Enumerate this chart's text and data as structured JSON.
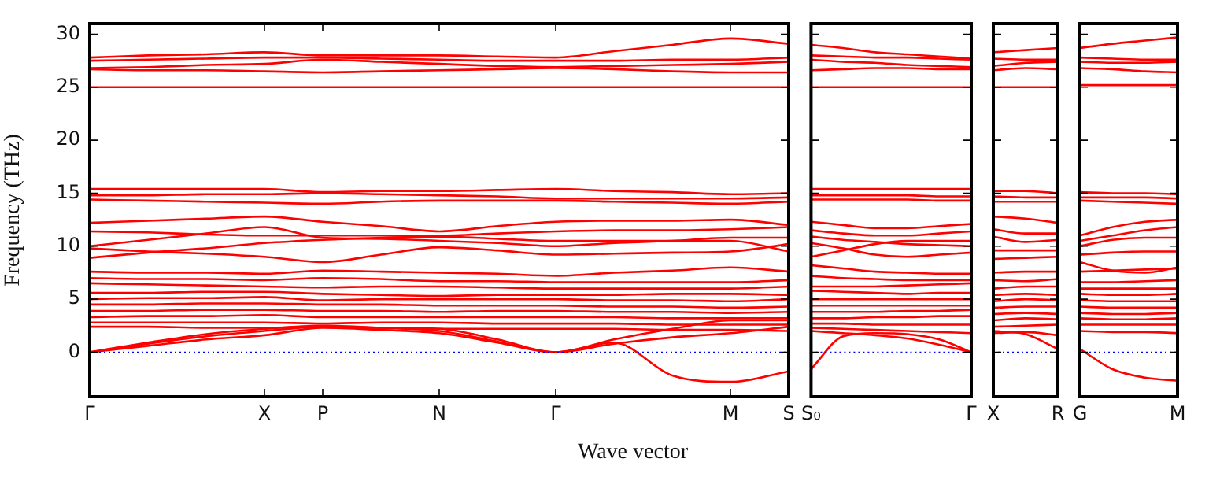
{
  "chart_data": [
    {
      "type": "line",
      "ylabel": "Frequency (THz)",
      "xlabel": "Wave vector",
      "grid": false,
      "legend": false,
      "marker": "none",
      "line_style": "solid",
      "categories": [
        "Γ",
        null,
        null,
        "X",
        "P",
        null,
        "N",
        null,
        "Γ",
        null,
        null,
        "M",
        "S"
      ],
      "ylim": [
        -4.2,
        31
      ],
      "yticks": [
        0,
        5,
        10,
        15,
        20,
        25,
        30
      ],
      "ref_lines": [
        {
          "axis": "y",
          "value": 0,
          "color": "#0000ff",
          "line_style": "dotted"
        }
      ],
      "series": [
        {
          "color": "#ff0000",
          "values": [
            27.8,
            28.0,
            28.1,
            28.3,
            28.0,
            28.0,
            28.0,
            27.9,
            27.8,
            28.4,
            29.0,
            29.6,
            29.1
          ]
        },
        {
          "color": "#ff0000",
          "values": [
            27.5,
            27.6,
            27.7,
            27.8,
            27.8,
            27.7,
            27.6,
            27.5,
            27.5,
            27.5,
            27.6,
            27.6,
            27.8
          ]
        },
        {
          "color": "#ff0000",
          "values": [
            26.8,
            26.9,
            27.1,
            27.2,
            27.6,
            27.4,
            27.2,
            27.0,
            26.9,
            27.0,
            27.1,
            27.2,
            27.4
          ]
        },
        {
          "color": "#ff0000",
          "values": [
            26.7,
            26.6,
            26.6,
            26.5,
            26.4,
            26.5,
            26.6,
            26.7,
            26.8,
            26.7,
            26.5,
            26.4,
            26.4
          ]
        },
        {
          "color": "#ff0000",
          "values": [
            25.0,
            25.0,
            25.0,
            25.0,
            25.0,
            25.0,
            25.0,
            25.0,
            25.0,
            25.0,
            25.0,
            25.0,
            25.0
          ]
        },
        {
          "color": "#ff0000",
          "values": [
            15.4,
            15.4,
            15.4,
            15.4,
            15.1,
            15.2,
            15.2,
            15.3,
            15.4,
            15.2,
            15.1,
            14.9,
            15.0
          ]
        },
        {
          "color": "#ff0000",
          "values": [
            14.8,
            14.8,
            14.9,
            14.9,
            15.0,
            14.9,
            14.8,
            14.7,
            14.5,
            14.5,
            14.5,
            14.5,
            14.6
          ]
        },
        {
          "color": "#ff0000",
          "values": [
            14.4,
            14.3,
            14.2,
            14.1,
            14.0,
            14.2,
            14.3,
            14.3,
            14.3,
            14.2,
            14.1,
            14.0,
            14.2
          ]
        },
        {
          "color": "#ff0000",
          "values": [
            12.2,
            12.4,
            12.6,
            12.8,
            12.3,
            11.9,
            11.4,
            11.9,
            12.3,
            12.4,
            12.4,
            12.5,
            12.0
          ]
        },
        {
          "color": "#ff0000",
          "values": [
            11.4,
            11.3,
            11.1,
            11.0,
            11.0,
            11.0,
            11.0,
            11.2,
            11.4,
            11.5,
            11.5,
            11.6,
            11.8
          ]
        },
        {
          "color": "#ff0000",
          "values": [
            10.0,
            10.6,
            11.2,
            11.8,
            10.8,
            10.7,
            10.5,
            10.3,
            10.0,
            10.3,
            10.5,
            10.8,
            10.8
          ]
        },
        {
          "color": "#ff0000",
          "values": [
            9.8,
            9.5,
            9.3,
            9.0,
            8.5,
            9.2,
            9.9,
            9.6,
            9.2,
            9.3,
            9.4,
            9.5,
            10.2
          ]
        },
        {
          "color": "#ff0000",
          "values": [
            8.9,
            9.4,
            9.8,
            10.3,
            10.6,
            10.8,
            10.9,
            10.7,
            10.5,
            10.5,
            10.5,
            10.5,
            9.5
          ]
        },
        {
          "color": "#ff0000",
          "values": [
            7.6,
            7.5,
            7.5,
            7.4,
            7.7,
            7.6,
            7.5,
            7.4,
            7.2,
            7.5,
            7.7,
            8.0,
            7.6
          ]
        },
        {
          "color": "#ff0000",
          "values": [
            7.0,
            6.9,
            6.9,
            6.8,
            7.0,
            6.9,
            6.7,
            6.7,
            6.6,
            6.6,
            6.6,
            6.6,
            6.8
          ]
        },
        {
          "color": "#ff0000",
          "values": [
            6.5,
            6.4,
            6.3,
            6.2,
            6.1,
            6.2,
            6.2,
            6.1,
            6.0,
            6.0,
            6.0,
            6.0,
            6.2
          ]
        },
        {
          "color": "#ff0000",
          "values": [
            5.6,
            5.6,
            5.7,
            5.7,
            5.5,
            5.4,
            5.3,
            5.4,
            5.4,
            5.4,
            5.5,
            5.5,
            5.4
          ]
        },
        {
          "color": "#ff0000",
          "values": [
            5.0,
            5.1,
            5.1,
            5.2,
            4.9,
            5.0,
            5.0,
            5.0,
            5.0,
            4.9,
            4.9,
            4.8,
            5.0
          ]
        },
        {
          "color": "#ff0000",
          "values": [
            4.5,
            4.5,
            4.6,
            4.6,
            4.5,
            4.5,
            4.4,
            4.4,
            4.4,
            4.3,
            4.3,
            4.2,
            4.3
          ]
        },
        {
          "color": "#ff0000",
          "values": [
            3.9,
            3.9,
            4.0,
            4.0,
            3.9,
            3.9,
            3.8,
            3.9,
            3.9,
            3.8,
            3.8,
            3.7,
            3.8
          ]
        },
        {
          "color": "#ff0000",
          "values": [
            3.3,
            3.4,
            3.4,
            3.5,
            3.3,
            3.3,
            3.3,
            3.3,
            3.3,
            3.3,
            3.2,
            3.2,
            3.2
          ]
        },
        {
          "color": "#ff0000",
          "values": [
            2.8,
            2.8,
            2.8,
            2.8,
            2.7,
            2.8,
            2.8,
            2.7,
            2.7,
            2.7,
            2.6,
            2.6,
            2.6
          ]
        },
        {
          "color": "#ff0000",
          "values": [
            2.4,
            2.4,
            2.3,
            2.3,
            2.4,
            2.3,
            2.2,
            2.2,
            2.2,
            2.2,
            2.1,
            2.1,
            2.0
          ]
        },
        {
          "color": "#ff0000",
          "values": [
            0,
            0.8,
            1.5,
            2.0,
            2.4,
            2.3,
            2.2,
            1.2,
            0,
            0.8,
            1.4,
            1.8,
            2.4
          ]
        },
        {
          "color": "#ff0000",
          "values": [
            0,
            0.6,
            1.2,
            1.6,
            2.3,
            2.1,
            1.8,
            0.9,
            0,
            1.2,
            2.2,
            3.0,
            3.0
          ]
        },
        {
          "color": "#ff0000",
          "values": [
            0,
            0.9,
            1.7,
            2.2,
            2.5,
            2.3,
            2.0,
            1.0,
            0,
            0.9,
            -2.2,
            -2.8,
            -1.8
          ]
        }
      ]
    },
    {
      "type": "line",
      "grid": false,
      "legend": false,
      "marker": "none",
      "line_style": "solid",
      "tick_labels": "x",
      "categories": [
        "S₀",
        null,
        null,
        null,
        null,
        "Γ"
      ],
      "ylim": [
        -4.2,
        31
      ],
      "yticks": [
        0,
        5,
        10,
        15,
        20,
        25,
        30
      ],
      "ref_lines": [
        {
          "axis": "y",
          "value": 0,
          "color": "#0000ff",
          "line_style": "dotted"
        }
      ],
      "series": [
        {
          "color": "#ff0000",
          "values": [
            29.0,
            28.7,
            28.3,
            28.1,
            27.9,
            27.7
          ]
        },
        {
          "color": "#ff0000",
          "values": [
            28.0,
            27.9,
            27.8,
            27.8,
            27.7,
            27.6
          ]
        },
        {
          "color": "#ff0000",
          "values": [
            27.6,
            27.4,
            27.3,
            27.1,
            27.0,
            26.9
          ]
        },
        {
          "color": "#ff0000",
          "values": [
            26.6,
            26.7,
            26.8,
            26.8,
            26.7,
            26.7
          ]
        },
        {
          "color": "#ff0000",
          "values": [
            25.0,
            25.0,
            25.0,
            25.0,
            25.0,
            25.0
          ]
        },
        {
          "color": "#ff0000",
          "values": [
            15.4,
            15.4,
            15.4,
            15.4,
            15.4,
            15.4
          ]
        },
        {
          "color": "#ff0000",
          "values": [
            14.8,
            14.8,
            14.8,
            14.8,
            14.7,
            14.7
          ]
        },
        {
          "color": "#ff0000",
          "values": [
            14.4,
            14.4,
            14.4,
            14.4,
            14.3,
            14.3
          ]
        },
        {
          "color": "#ff0000",
          "values": [
            12.3,
            12.0,
            11.7,
            11.7,
            11.9,
            12.1
          ]
        },
        {
          "color": "#ff0000",
          "values": [
            11.5,
            11.2,
            11.0,
            11.0,
            11.2,
            11.4
          ]
        },
        {
          "color": "#ff0000",
          "values": [
            10.9,
            10.6,
            10.4,
            10.2,
            10.1,
            10.0
          ]
        },
        {
          "color": "#ff0000",
          "values": [
            10.3,
            9.8,
            9.2,
            9.0,
            9.2,
            9.4
          ]
        },
        {
          "color": "#ff0000",
          "values": [
            9.0,
            9.6,
            10.2,
            10.5,
            10.5,
            10.5
          ]
        },
        {
          "color": "#ff0000",
          "values": [
            8.2,
            7.9,
            7.6,
            7.5,
            7.4,
            7.4
          ]
        },
        {
          "color": "#ff0000",
          "values": [
            7.2,
            7.0,
            6.9,
            6.8,
            6.8,
            6.8
          ]
        },
        {
          "color": "#ff0000",
          "values": [
            6.2,
            6.2,
            6.2,
            6.3,
            6.4,
            6.5
          ]
        },
        {
          "color": "#ff0000",
          "values": [
            5.8,
            5.7,
            5.6,
            5.5,
            5.6,
            5.6
          ]
        },
        {
          "color": "#ff0000",
          "values": [
            5.0,
            5.0,
            5.0,
            5.0,
            5.0,
            5.0
          ]
        },
        {
          "color": "#ff0000",
          "values": [
            4.4,
            4.4,
            4.4,
            4.4,
            4.4,
            4.4
          ]
        },
        {
          "color": "#ff0000",
          "values": [
            3.8,
            3.8,
            3.8,
            3.9,
            3.9,
            4.0
          ]
        },
        {
          "color": "#ff0000",
          "values": [
            3.2,
            3.2,
            3.3,
            3.3,
            3.4,
            3.4
          ]
        },
        {
          "color": "#ff0000",
          "values": [
            2.7,
            2.7,
            2.6,
            2.6,
            2.6,
            2.6
          ]
        },
        {
          "color": "#ff0000",
          "values": [
            2.3,
            2.2,
            2.1,
            2.0,
            1.9,
            1.8
          ]
        },
        {
          "color": "#ff0000",
          "values": [
            2.0,
            1.8,
            1.6,
            1.3,
            0.7,
            0
          ]
        },
        {
          "color": "#ff0000",
          "values": [
            -1.6,
            1.5,
            1.8,
            1.7,
            1.2,
            0
          ]
        }
      ]
    },
    {
      "type": "line",
      "grid": false,
      "legend": false,
      "marker": "none",
      "line_style": "solid",
      "tick_labels": "x",
      "categories": [
        "X",
        null,
        "R"
      ],
      "ylim": [
        -4.2,
        31
      ],
      "yticks": [
        0,
        5,
        10,
        15,
        20,
        25,
        30
      ],
      "ref_lines": [
        {
          "axis": "y",
          "value": 0,
          "color": "#0000ff",
          "line_style": "dotted"
        }
      ],
      "series": [
        {
          "color": "#ff0000",
          "values": [
            28.3,
            28.5,
            28.7
          ]
        },
        {
          "color": "#ff0000",
          "values": [
            27.7,
            27.6,
            27.6
          ]
        },
        {
          "color": "#ff0000",
          "values": [
            27.0,
            27.3,
            27.4
          ]
        },
        {
          "color": "#ff0000",
          "values": [
            26.6,
            26.8,
            26.7
          ]
        },
        {
          "color": "#ff0000",
          "values": [
            25.0,
            25.0,
            25.0
          ]
        },
        {
          "color": "#ff0000",
          "values": [
            15.2,
            15.2,
            15.0
          ]
        },
        {
          "color": "#ff0000",
          "values": [
            14.7,
            14.6,
            14.6
          ]
        },
        {
          "color": "#ff0000",
          "values": [
            14.2,
            14.2,
            14.2
          ]
        },
        {
          "color": "#ff0000",
          "values": [
            12.8,
            12.6,
            12.2
          ]
        },
        {
          "color": "#ff0000",
          "values": [
            11.6,
            11.2,
            11.2
          ]
        },
        {
          "color": "#ff0000",
          "values": [
            10.9,
            10.4,
            10.6
          ]
        },
        {
          "color": "#ff0000",
          "values": [
            9.6,
            9.6,
            9.6
          ]
        },
        {
          "color": "#ff0000",
          "values": [
            8.8,
            8.9,
            9.0
          ]
        },
        {
          "color": "#ff0000",
          "values": [
            7.5,
            7.6,
            7.6
          ]
        },
        {
          "color": "#ff0000",
          "values": [
            6.8,
            6.7,
            6.9
          ]
        },
        {
          "color": "#ff0000",
          "values": [
            6.0,
            6.2,
            6.2
          ]
        },
        {
          "color": "#ff0000",
          "values": [
            5.4,
            5.5,
            5.4
          ]
        },
        {
          "color": "#ff0000",
          "values": [
            4.8,
            5.0,
            4.9
          ]
        },
        {
          "color": "#ff0000",
          "values": [
            4.2,
            4.3,
            4.3
          ]
        },
        {
          "color": "#ff0000",
          "values": [
            3.6,
            3.7,
            3.6
          ]
        },
        {
          "color": "#ff0000",
          "values": [
            3.0,
            3.2,
            3.1
          ]
        },
        {
          "color": "#ff0000",
          "values": [
            2.4,
            2.5,
            2.6
          ]
        },
        {
          "color": "#ff0000",
          "values": [
            1.8,
            1.9,
            1.6
          ]
        },
        {
          "color": "#ff0000",
          "values": [
            2.0,
            1.7,
            0.3
          ]
        }
      ]
    },
    {
      "type": "line",
      "grid": false,
      "legend": false,
      "marker": "none",
      "line_style": "solid",
      "tick_labels": "x",
      "categories": [
        "G",
        null,
        null,
        "M"
      ],
      "ylim": [
        -4.2,
        31
      ],
      "yticks": [
        0,
        5,
        10,
        15,
        20,
        25,
        30
      ],
      "ref_lines": [
        {
          "axis": "y",
          "value": 0,
          "color": "#0000ff",
          "line_style": "dotted"
        }
      ],
      "series": [
        {
          "color": "#ff0000",
          "values": [
            28.7,
            29.1,
            29.4,
            29.7
          ]
        },
        {
          "color": "#ff0000",
          "values": [
            27.8,
            27.7,
            27.6,
            27.6
          ]
        },
        {
          "color": "#ff0000",
          "values": [
            27.4,
            27.3,
            27.3,
            27.4
          ]
        },
        {
          "color": "#ff0000",
          "values": [
            26.8,
            26.7,
            26.5,
            26.4
          ]
        },
        {
          "color": "#ff0000",
          "values": [
            25.2,
            25.2,
            25.2,
            25.2
          ]
        },
        {
          "color": "#ff0000",
          "values": [
            15.1,
            15.0,
            15.0,
            14.9
          ]
        },
        {
          "color": "#ff0000",
          "values": [
            14.6,
            14.6,
            14.6,
            14.5
          ]
        },
        {
          "color": "#ff0000",
          "values": [
            14.3,
            14.2,
            14.1,
            14.0
          ]
        },
        {
          "color": "#ff0000",
          "values": [
            11.0,
            11.8,
            12.3,
            12.5
          ]
        },
        {
          "color": "#ff0000",
          "values": [
            10.5,
            11.0,
            11.5,
            11.8
          ]
        },
        {
          "color": "#ff0000",
          "values": [
            10.0,
            10.6,
            10.8,
            10.8
          ]
        },
        {
          "color": "#ff0000",
          "values": [
            9.2,
            9.4,
            9.5,
            9.5
          ]
        },
        {
          "color": "#ff0000",
          "values": [
            8.5,
            7.7,
            7.5,
            8.0
          ]
        },
        {
          "color": "#ff0000",
          "values": [
            7.6,
            7.7,
            7.8,
            7.9
          ]
        },
        {
          "color": "#ff0000",
          "values": [
            6.6,
            6.6,
            6.7,
            6.8
          ]
        },
        {
          "color": "#ff0000",
          "values": [
            6.0,
            6.0,
            6.0,
            6.0
          ]
        },
        {
          "color": "#ff0000",
          "values": [
            5.5,
            5.4,
            5.4,
            5.5
          ]
        },
        {
          "color": "#ff0000",
          "values": [
            4.9,
            4.8,
            4.8,
            4.8
          ]
        },
        {
          "color": "#ff0000",
          "values": [
            4.3,
            4.2,
            4.2,
            4.2
          ]
        },
        {
          "color": "#ff0000",
          "values": [
            3.7,
            3.6,
            3.6,
            3.7
          ]
        },
        {
          "color": "#ff0000",
          "values": [
            3.2,
            3.1,
            3.1,
            3.2
          ]
        },
        {
          "color": "#ff0000",
          "values": [
            2.6,
            2.6,
            2.6,
            2.6
          ]
        },
        {
          "color": "#ff0000",
          "values": [
            2.0,
            1.9,
            1.9,
            1.8
          ]
        },
        {
          "color": "#ff0000",
          "values": [
            0.3,
            -1.6,
            -2.4,
            -2.7
          ]
        }
      ]
    }
  ]
}
